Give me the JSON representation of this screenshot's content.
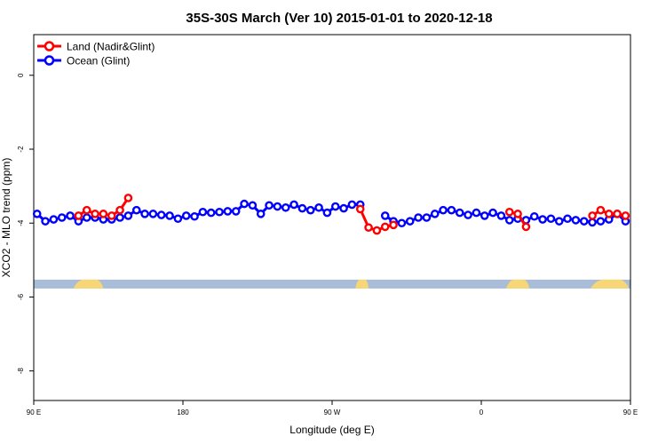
{
  "chart_data": {
    "type": "line",
    "title": "35S-30S March (Ver 10)   2015-01-01 to 2020-12-18",
    "xlabel": "Longitude (deg E)",
    "ylabel": "XCO2 - MLO trend (ppm)",
    "xlim": [
      90,
      450
    ],
    "ylim": [
      -8.8,
      1.1
    ],
    "x_ticks": [
      {
        "value": 90,
        "label": "90 E"
      },
      {
        "value": 180,
        "label": "180"
      },
      {
        "value": 270,
        "label": "90 W"
      },
      {
        "value": 360,
        "label": "0"
      },
      {
        "value": 450,
        "label": "90 E"
      },
      {
        "value": 540,
        "label": "180"
      }
    ],
    "y_ticks": [
      {
        "value": 0,
        "label": "0"
      },
      {
        "value": -2,
        "label": "-2"
      },
      {
        "value": -4,
        "label": "-4"
      },
      {
        "value": -6,
        "label": "-6"
      },
      {
        "value": -8,
        "label": "-8"
      }
    ],
    "legend_position": "top-left",
    "grid": false,
    "land_band_y": -5.65,
    "colors": {
      "land": "#ff0000",
      "ocean": "#0000ff",
      "ocean_band": "#a9bcd8",
      "land_band": "#f7d775"
    },
    "land_segments": [
      [
        114,
        132
      ],
      [
        284,
        292
      ],
      [
        375,
        389
      ],
      [
        426,
        449
      ]
    ],
    "series": [
      {
        "name": "Land (Nadir&Glint)",
        "color": "#ff0000",
        "segments": [
          {
            "x": [
              117,
              122,
              127,
              132,
              137,
              142,
              147
            ],
            "y": [
              -3.8,
              -3.65,
              -3.75,
              -3.75,
              -3.8,
              -3.65,
              -3.32
            ]
          },
          {
            "x": [
              287,
              292,
              297,
              302,
              307
            ],
            "y": [
              -3.62,
              -4.12,
              -4.2,
              -4.1,
              -4.05
            ]
          },
          {
            "x": [
              377,
              382,
              387
            ],
            "y": [
              -3.7,
              -3.75,
              -4.1
            ]
          },
          {
            "x": [
              427,
              432,
              437,
              442,
              447,
              452
            ],
            "y": [
              -3.8,
              -3.65,
              -3.75,
              -3.75,
              -3.8,
              -3.65
            ]
          },
          {
            "x": [
              452,
              457
            ],
            "y": [
              -3.65,
              -3.32
            ]
          }
        ]
      },
      {
        "name": "Ocean (Glint)",
        "color": "#0000ff",
        "segments": [
          {
            "x": [
              92,
              97,
              102,
              107,
              112,
              117,
              122,
              127,
              132,
              137,
              142,
              147,
              152,
              157,
              162,
              167,
              172,
              177,
              182,
              187,
              192,
              197,
              202,
              207,
              212,
              217,
              222,
              227,
              232,
              237,
              242,
              247,
              252,
              257,
              262,
              267,
              272,
              277,
              282,
              287
            ],
            "y": [
              -3.75,
              -3.95,
              -3.9,
              -3.85,
              -3.8,
              -3.95,
              -3.85,
              -3.85,
              -3.9,
              -3.9,
              -3.85,
              -3.8,
              -3.65,
              -3.75,
              -3.75,
              -3.78,
              -3.8,
              -3.88,
              -3.8,
              -3.82,
              -3.7,
              -3.72,
              -3.7,
              -3.68,
              -3.68,
              -3.48,
              -3.52,
              -3.75,
              -3.52,
              -3.55,
              -3.58,
              -3.5,
              -3.6,
              -3.65,
              -3.58,
              -3.72,
              -3.55,
              -3.6,
              -3.5,
              -3.5
            ]
          },
          {
            "x": [
              302,
              307,
              312,
              317,
              322,
              327,
              332,
              337,
              342,
              347,
              352,
              357,
              362,
              367,
              372,
              377,
              382,
              387,
              392,
              397,
              402,
              407,
              412,
              417,
              422,
              427,
              432,
              437,
              442,
              447,
              452,
              457,
              462,
              467,
              472,
              477,
              482
            ],
            "y": [
              -3.8,
              -3.95,
              -4.0,
              -3.95,
              -3.85,
              -3.85,
              -3.75,
              -3.65,
              -3.65,
              -3.72,
              -3.78,
              -3.72,
              -3.8,
              -3.72,
              -3.8,
              -3.92,
              -3.88,
              -3.92,
              -3.82,
              -3.9,
              -3.88,
              -3.95,
              -3.88,
              -3.92,
              -3.95,
              -3.98,
              -3.95,
              -3.9,
              -3.75,
              -3.95,
              -3.92,
              -3.85,
              -3.8,
              -4.05,
              -3.85,
              -3.9,
              -3.82
            ]
          }
        ]
      }
    ]
  }
}
